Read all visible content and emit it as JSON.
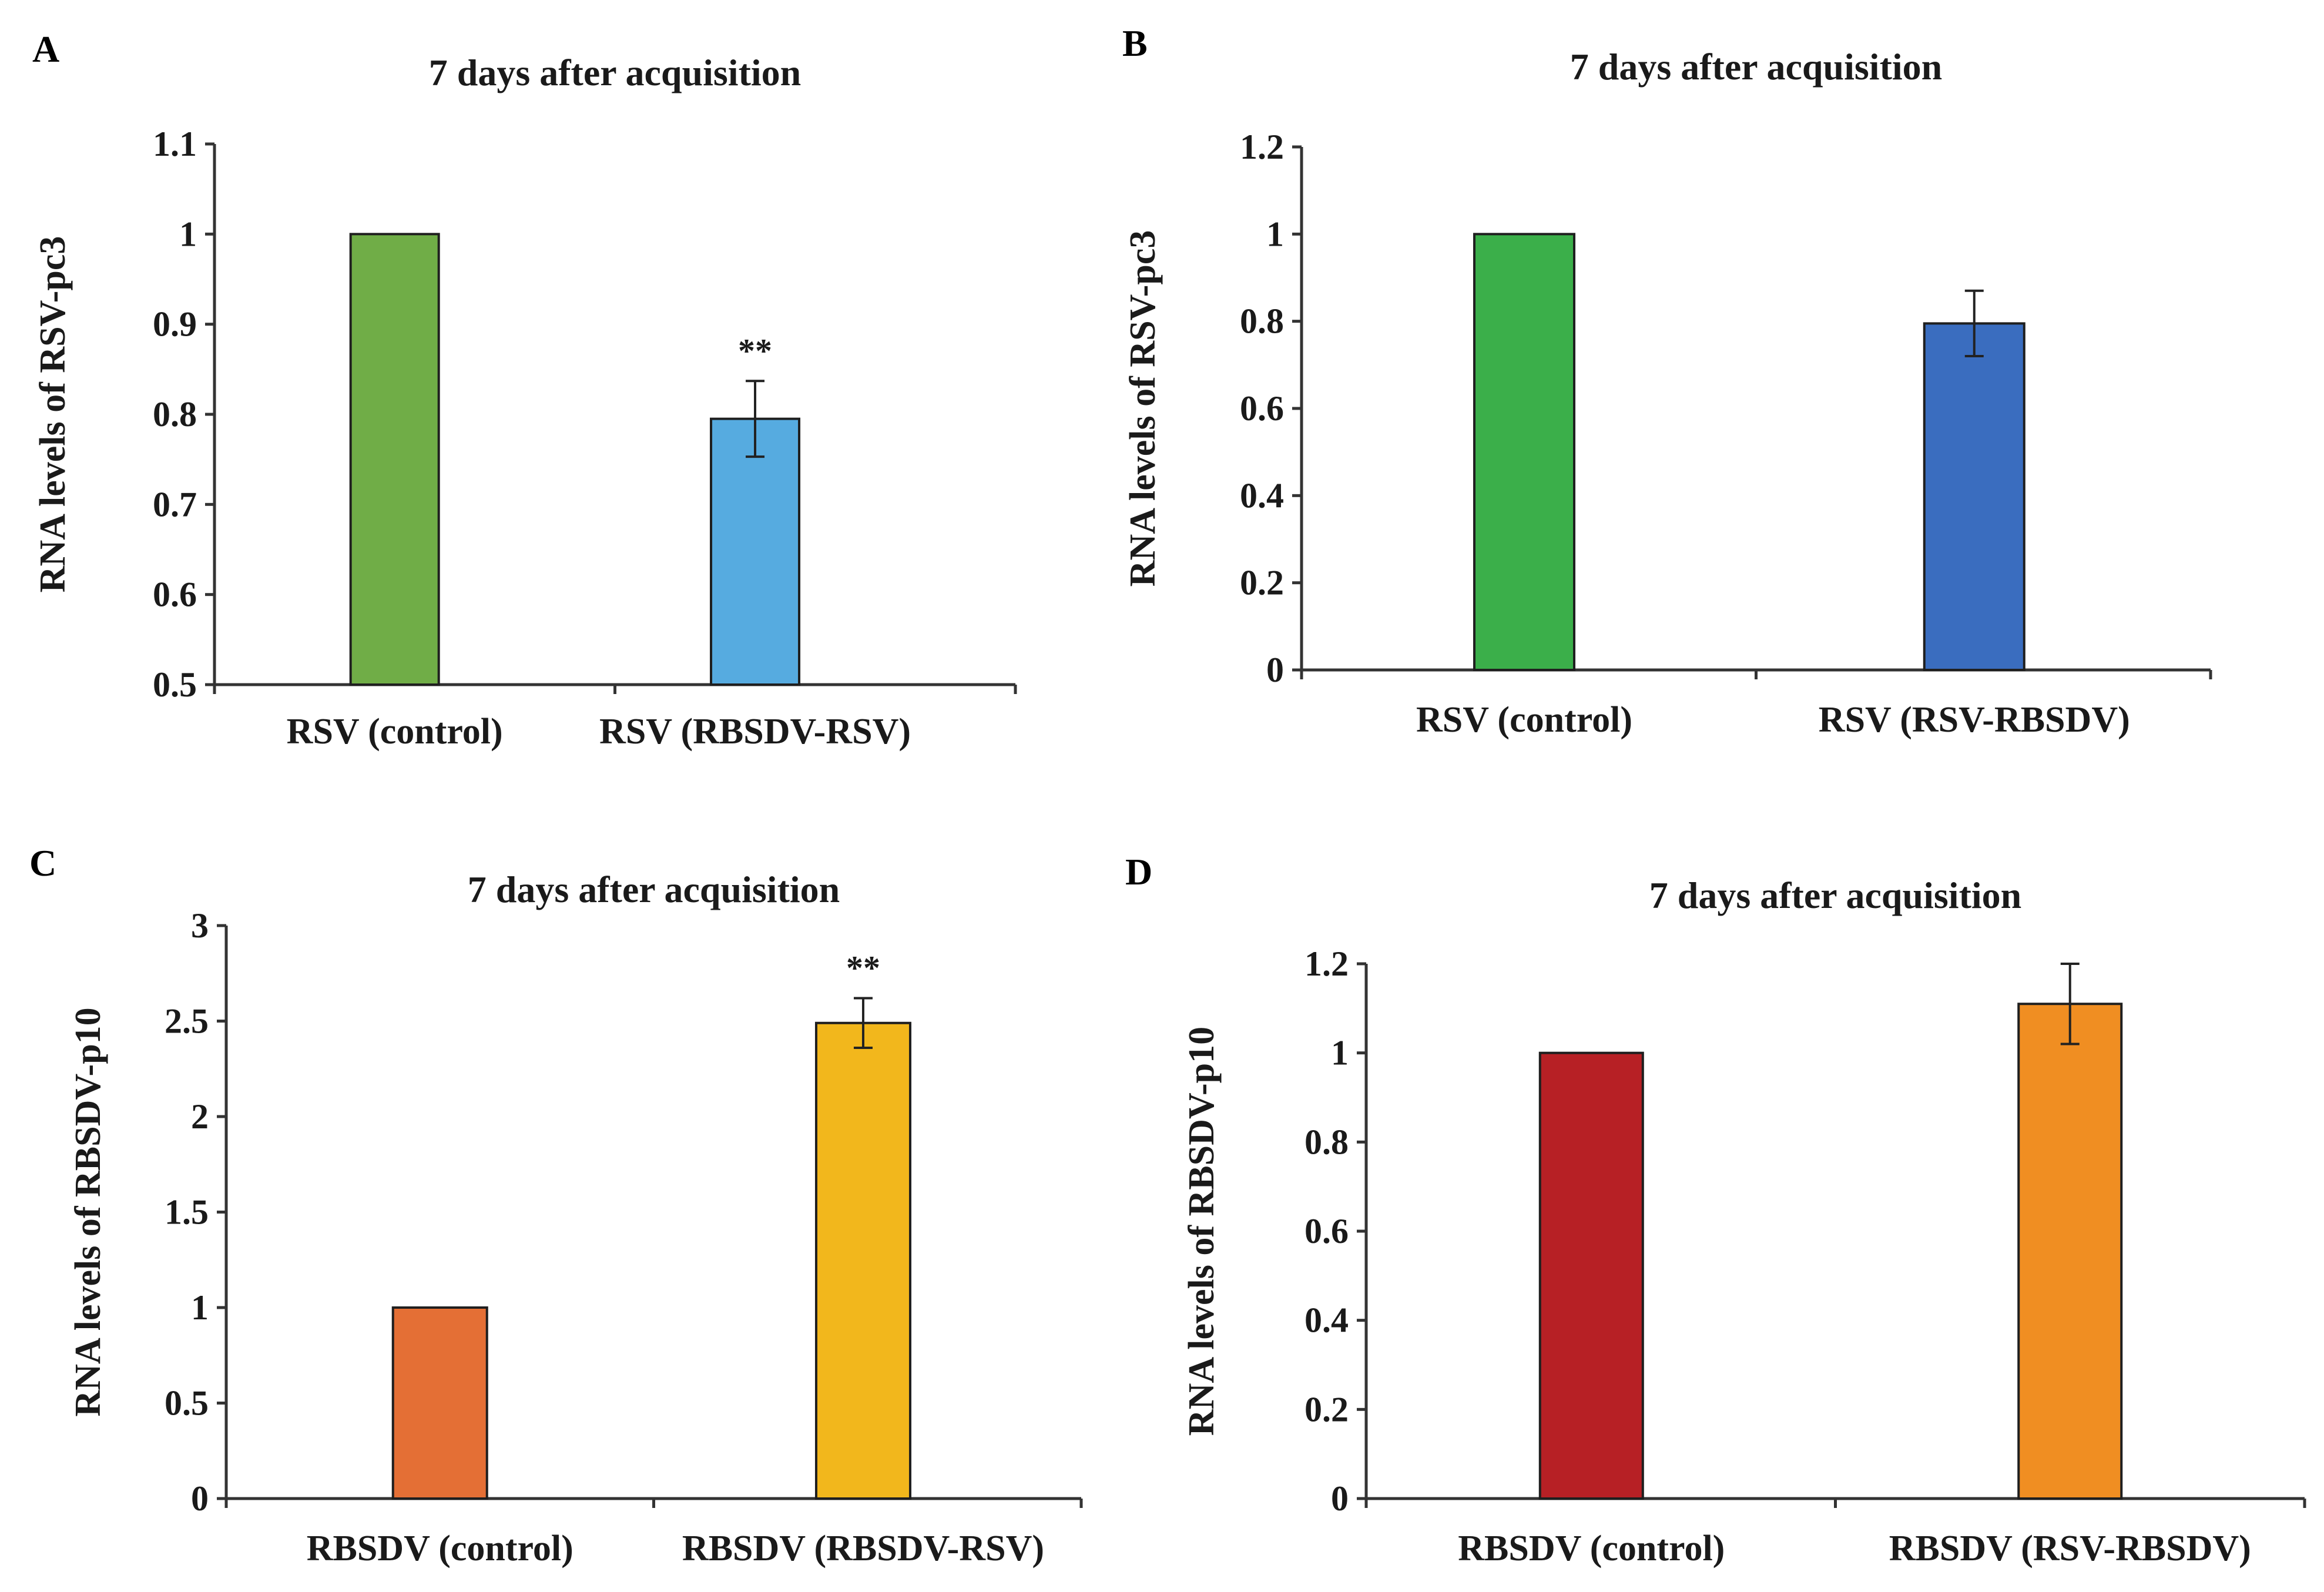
{
  "chart_data": [
    {
      "panel": "A",
      "type": "bar",
      "title": "7 days after acquisition",
      "ylabel": "RNA levels of RSV-pc3",
      "xlabel": "",
      "ylim": [
        0.5,
        1.1
      ],
      "yticks": [
        "0.5",
        "0.6",
        "0.7",
        "0.8",
        "0.9",
        "1",
        "1.1"
      ],
      "categories": [
        "RSV (control)",
        "RSV (RBSDV-RSV)"
      ],
      "values": [
        1.0,
        0.795
      ],
      "errors": [
        0,
        0.042
      ],
      "annotations": [
        "",
        "**"
      ],
      "colors": [
        "#70AD47",
        "#56ABE0"
      ]
    },
    {
      "panel": "B",
      "type": "bar",
      "title": "7 days after acquisition",
      "ylabel": "RNA levels of RSV-pc3",
      "xlabel": "",
      "ylim": [
        0,
        1.2
      ],
      "yticks": [
        "0",
        "0.2",
        "0.4",
        "0.6",
        "0.8",
        "1",
        "1.2"
      ],
      "categories": [
        "RSV (control)",
        "RSV (RSV-RBSDV)"
      ],
      "values": [
        1.0,
        0.795
      ],
      "errors": [
        0,
        0.075
      ],
      "annotations": [
        "",
        ""
      ],
      "colors": [
        "#3BAF4A",
        "#3A6DBF"
      ]
    },
    {
      "panel": "C",
      "type": "bar",
      "title": "7 days after acquisition",
      "ylabel": "RNA levels of RBSDV-p10",
      "xlabel": "",
      "ylim": [
        0,
        3
      ],
      "yticks": [
        "0",
        "0.5",
        "1",
        "1.5",
        "2",
        "2.5",
        "3"
      ],
      "categories": [
        "RBSDV (control)",
        "RBSDV (RBSDV-RSV)"
      ],
      "values": [
        1.0,
        2.49
      ],
      "errors": [
        0,
        0.13
      ],
      "annotations": [
        "",
        "**"
      ],
      "colors": [
        "#E46F35",
        "#F2B71C"
      ]
    },
    {
      "panel": "D",
      "type": "bar",
      "title": "7 days after acquisition",
      "ylabel": "RNA levels of RBSDV-p10",
      "xlabel": "",
      "ylim": [
        0,
        1.2
      ],
      "yticks": [
        "0",
        "0.2",
        "0.4",
        "0.6",
        "0.8",
        "1",
        "1.2"
      ],
      "categories": [
        "RBSDV (control)",
        "RBSDV (RSV-RBSDV)"
      ],
      "values": [
        1.0,
        1.11
      ],
      "errors": [
        0,
        0.09
      ],
      "annotations": [
        "",
        ""
      ],
      "colors": [
        "#B72025",
        "#F08E22"
      ]
    }
  ]
}
